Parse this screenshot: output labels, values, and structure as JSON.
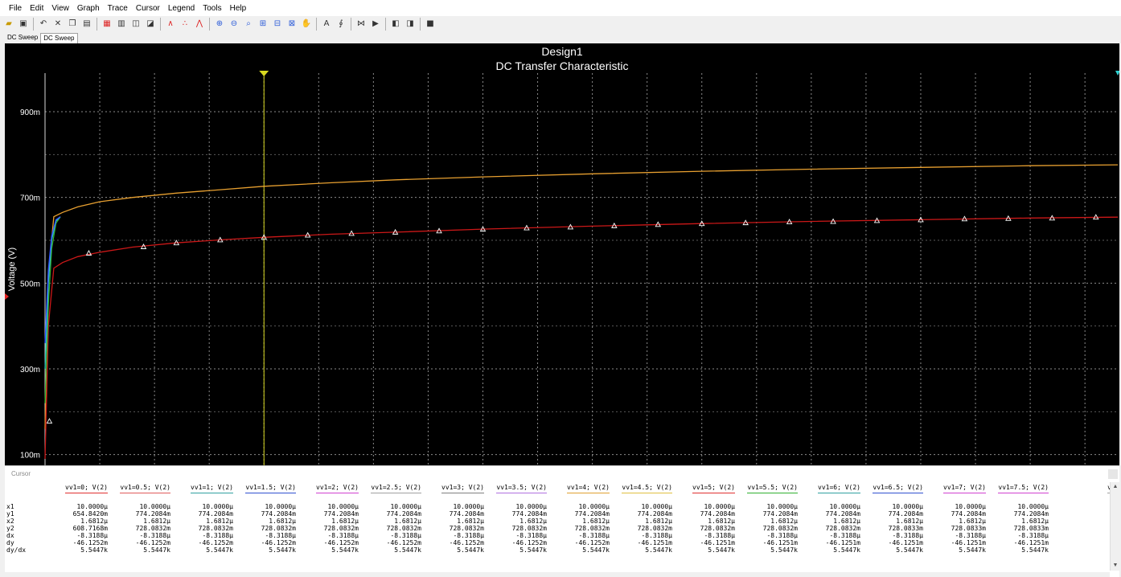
{
  "menu": [
    "File",
    "Edit",
    "View",
    "Graph",
    "Trace",
    "Cursor",
    "Legend",
    "Tools",
    "Help"
  ],
  "toolbar_icons": [
    "open-icon",
    "save-icon",
    "undo-icon",
    "cut-icon",
    "copy-icon",
    "paste-icon",
    "grid-icon",
    "properties-icon",
    "overlay-icon",
    "export-icon",
    "line-trace-icon",
    "scatter-trace-icon",
    "line-marker-icon",
    "zoom-in-icon",
    "zoom-out-icon",
    "zoom-area-icon",
    "zoom-fit-icon",
    "zoom-x-icon",
    "zoom-y-icon",
    "pan-icon",
    "text-icon",
    "label-icon",
    "cursor-icon",
    "select-icon",
    "copy-graph-icon",
    "paste-graph-icon",
    "stop-icon"
  ],
  "tabs": [
    "DC Sweep",
    "DC Sweep"
  ],
  "cursor_panel": {
    "title": "Cursor",
    "row_labels": [
      "x1",
      "y1",
      "x2",
      "y2",
      "dx",
      "dy",
      "dy/dx"
    ],
    "columns": [
      {
        "header": "vv1=0; V(2)",
        "color": "#e03030",
        "values": [
          "10.0000µ",
          "654.8420m",
          "1.6812µ",
          "608.7168m",
          "-8.3188µ",
          "-46.1252m",
          "5.5447k"
        ]
      },
      {
        "header": "vv1=0.5; V(2)",
        "color": "#e05a5a",
        "values": [
          "10.0000µ",
          "774.2084m",
          "1.6812µ",
          "728.0832m",
          "-8.3188µ",
          "-46.1252m",
          "5.5447k"
        ]
      },
      {
        "header": "vv1=1; V(2)",
        "color": "#30a0a0",
        "values": [
          "10.0000µ",
          "774.2084m",
          "1.6812µ",
          "728.0832m",
          "-8.3188µ",
          "-46.1252m",
          "5.5447k"
        ]
      },
      {
        "header": "vv1=1.5; V(2)",
        "color": "#3050d0",
        "values": [
          "10.0000µ",
          "774.2084m",
          "1.6812µ",
          "728.0832m",
          "-8.3188µ",
          "-46.1252m",
          "5.5447k"
        ]
      },
      {
        "header": "vv1=2; V(2)",
        "color": "#d040d0",
        "values": [
          "10.0000µ",
          "774.2084m",
          "1.6812µ",
          "728.0832m",
          "-8.3188µ",
          "-46.1252m",
          "5.5447k"
        ]
      },
      {
        "header": "vv1=2.5; V(2)",
        "color": "#a0a0a0",
        "values": [
          "10.0000µ",
          "774.2084m",
          "1.6812µ",
          "728.0832m",
          "-8.3188µ",
          "-46.1252m",
          "5.5447k"
        ]
      },
      {
        "header": "vv1=3; V(2)",
        "color": "#808080",
        "values": [
          "10.0000µ",
          "774.2084m",
          "1.6812µ",
          "728.0832m",
          "-8.3188µ",
          "-46.1252m",
          "5.5447k"
        ]
      },
      {
        "header": "vv1=3.5; V(2)",
        "color": "#b070e0",
        "values": [
          "10.0000µ",
          "774.2084m",
          "1.6812µ",
          "728.0832m",
          "-8.3188µ",
          "-46.1252m",
          "5.5447k"
        ]
      },
      {
        "header": "vv1=4; V(2)",
        "color": "#e0a030",
        "values": [
          "10.0000µ",
          "774.2084m",
          "1.6812µ",
          "728.0832m",
          "-8.3188µ",
          "-46.1252m",
          "5.5447k"
        ]
      },
      {
        "header": "vv1=4.5; V(2)",
        "color": "#e0c040",
        "values": [
          "10.0000µ",
          "774.2084m",
          "1.6812µ",
          "728.0832m",
          "-8.3188µ",
          "-46.1251m",
          "5.5447k"
        ]
      },
      {
        "header": "vv1=5; V(2)",
        "color": "#e03030",
        "values": [
          "10.0000µ",
          "774.2084m",
          "1.6812µ",
          "728.0832m",
          "-8.3188µ",
          "-46.1251m",
          "5.5447k"
        ]
      },
      {
        "header": "vv1=5.5; V(2)",
        "color": "#30b030",
        "values": [
          "10.0000µ",
          "774.2084m",
          "1.6812µ",
          "728.0832m",
          "-8.3188µ",
          "-46.1251m",
          "5.5447k"
        ]
      },
      {
        "header": "vv1=6; V(2)",
        "color": "#30a0a0",
        "values": [
          "10.0000µ",
          "774.2084m",
          "1.6812µ",
          "728.0832m",
          "-8.3188µ",
          "-46.1251m",
          "5.5447k"
        ]
      },
      {
        "header": "vv1=6.5; V(2)",
        "color": "#3050d0",
        "values": [
          "10.0000µ",
          "774.2084m",
          "1.6812µ",
          "728.0833m",
          "-8.3188µ",
          "-46.1251m",
          "5.5447k"
        ]
      },
      {
        "header": "vv1=7; V(2)",
        "color": "#d040d0",
        "values": [
          "10.0000µ",
          "774.2084m",
          "1.6812µ",
          "728.0833m",
          "-8.3188µ",
          "-46.1251m",
          "5.5447k"
        ]
      },
      {
        "header": "vv1=7.5; V(2)",
        "color": "#d040d0",
        "values": [
          "10.0000µ",
          "774.2084m",
          "1.6812µ",
          "728.0833m",
          "-8.3188µ",
          "-46.1251m",
          "5.5447k"
        ]
      },
      {
        "header": "v",
        "color": "#a0a0a0",
        "values": [
          "",
          "",
          "",
          "",
          "",
          "",
          ""
        ]
      }
    ]
  },
  "chart_data": {
    "type": "line",
    "title": "Design1",
    "subtitle": "DC Transfer Characteristic",
    "ylabel": "Voltage (V)",
    "xlabel": "",
    "ylim": [
      0.075,
      0.99
    ],
    "xlim": [
      0,
      49.0
    ],
    "yticks": [
      {
        "value": 0.9,
        "label": "900m"
      },
      {
        "value": 0.7,
        "label": "700m"
      },
      {
        "value": 0.5,
        "label": "500m"
      },
      {
        "value": 0.3,
        "label": "300m"
      },
      {
        "value": 0.1,
        "label": "100m"
      }
    ],
    "xgrid": [
      2.5,
      5,
      7.5,
      10,
      12.5,
      15,
      17.5,
      20,
      22.5,
      25,
      27.5,
      30,
      32.5,
      35,
      37.5,
      40,
      42.5,
      45,
      47.5
    ],
    "grid": true,
    "cursors": [
      {
        "x": 10.0,
        "color": "#d8d820"
      },
      {
        "x": 0.0,
        "color": "#d8d8d8"
      }
    ],
    "series": [
      {
        "color": "#e8a030",
        "x": [
          0,
          0.15,
          0.4,
          0.8,
          1.5,
          2.5,
          4,
          6,
          8,
          10,
          13,
          16,
          20,
          25,
          30,
          35,
          40,
          45,
          49
        ],
        "y": [
          0.16,
          0.52,
          0.655,
          0.665,
          0.678,
          0.69,
          0.7,
          0.71,
          0.718,
          0.726,
          0.734,
          0.741,
          0.748,
          0.755,
          0.761,
          0.766,
          0.77,
          0.774,
          0.776
        ]
      },
      {
        "color": "#cc1818",
        "markers": true,
        "x": [
          0,
          0.15,
          0.4,
          0.8,
          1.5,
          2.5,
          4,
          6,
          8,
          10,
          13,
          16,
          20,
          25,
          30,
          35,
          40,
          45,
          49
        ],
        "y": [
          0.09,
          0.4,
          0.535,
          0.548,
          0.562,
          0.572,
          0.584,
          0.594,
          0.601,
          0.607,
          0.614,
          0.619,
          0.626,
          0.633,
          0.639,
          0.644,
          0.648,
          0.652,
          0.654
        ]
      },
      {
        "color": "#30b030",
        "x": [
          0,
          0.15,
          0.3,
          0.5,
          0.7
        ],
        "y": [
          0.22,
          0.45,
          0.58,
          0.64,
          0.655
        ]
      },
      {
        "color": "#30c0c0",
        "x": [
          0,
          0.15,
          0.3,
          0.5,
          0.7
        ],
        "y": [
          0.3,
          0.5,
          0.6,
          0.645,
          0.655
        ]
      },
      {
        "color": "#3050ff",
        "x": [
          0,
          0.15,
          0.3,
          0.5,
          0.7
        ],
        "y": [
          0.36,
          0.53,
          0.61,
          0.648,
          0.655
        ]
      }
    ],
    "marker_points": {
      "x": [
        0.2,
        2.0,
        4.5,
        6.0,
        8.0,
        10.0,
        12.0,
        14.0,
        16.0,
        18.0,
        20.0,
        22.0,
        24.0,
        26.0,
        28.0,
        30.0,
        32.0,
        34.0,
        36.0,
        38.0,
        40.0,
        42.0,
        44.0,
        46.0,
        48.0
      ],
      "y": [
        0.178,
        0.57,
        0.585,
        0.594,
        0.601,
        0.607,
        0.612,
        0.616,
        0.619,
        0.622,
        0.626,
        0.629,
        0.631,
        0.634,
        0.637,
        0.639,
        0.641,
        0.643,
        0.644,
        0.646,
        0.648,
        0.65,
        0.651,
        0.652,
        0.654
      ]
    }
  }
}
